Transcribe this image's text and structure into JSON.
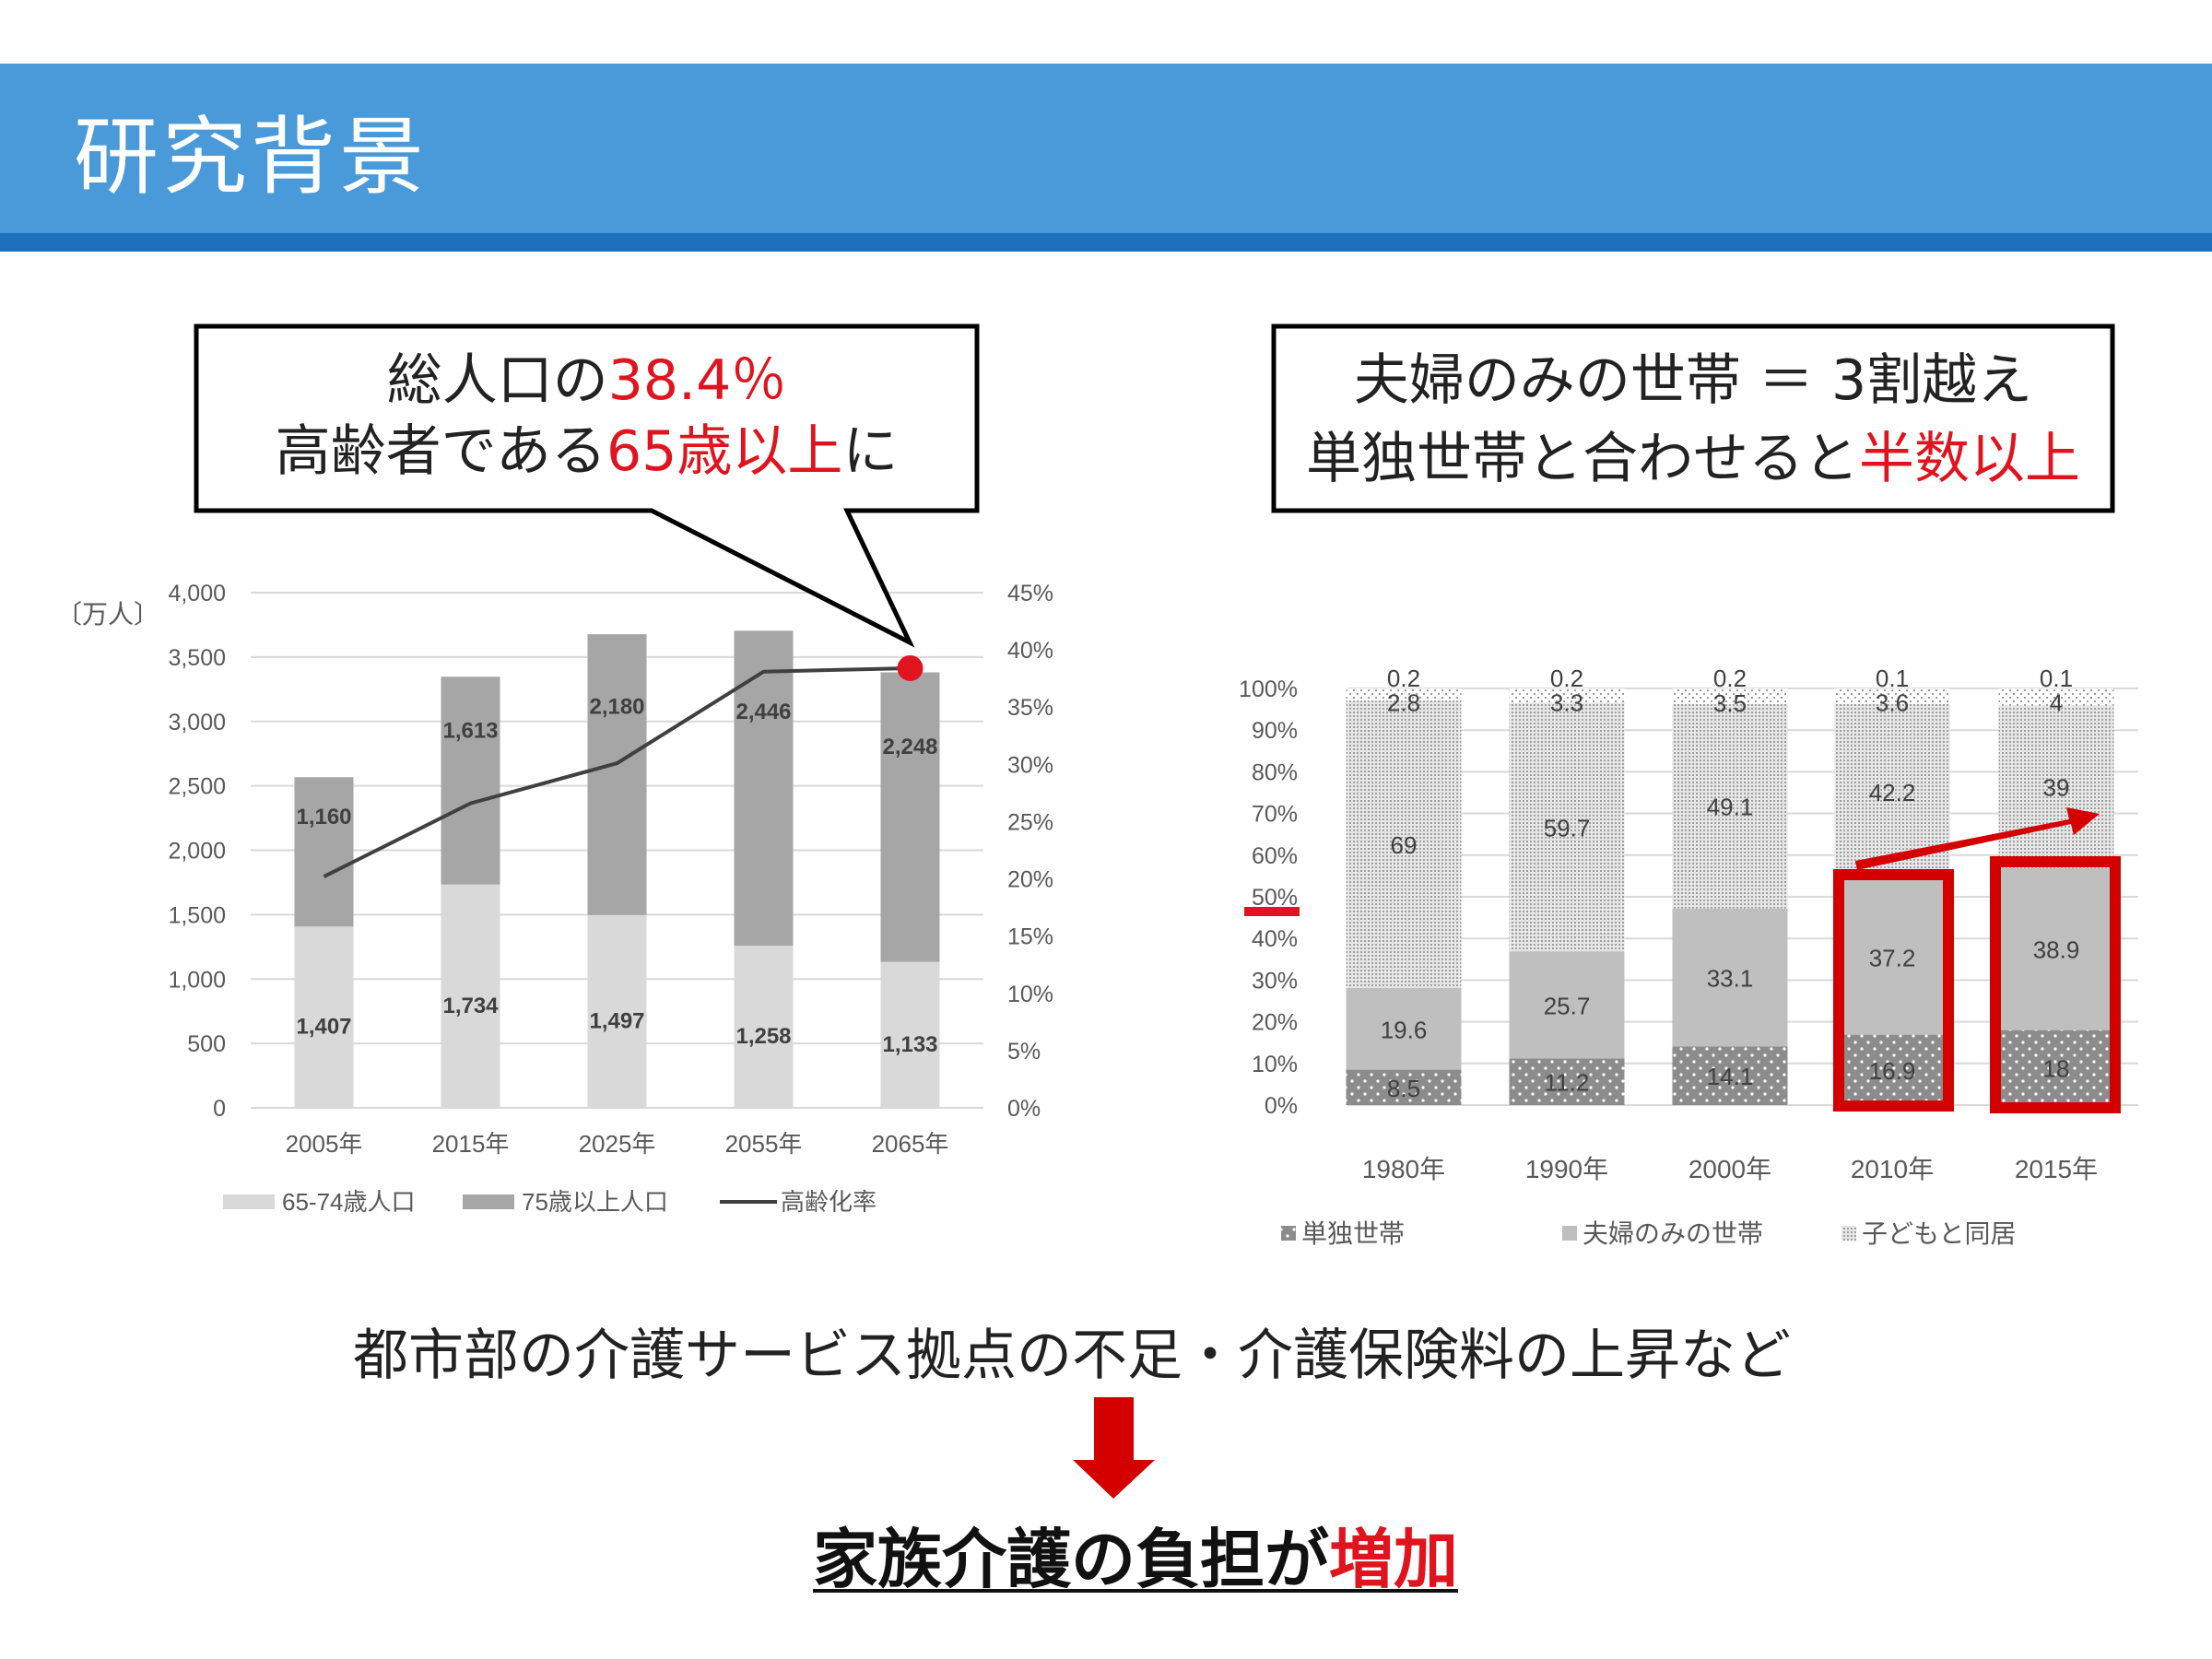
{
  "header": {
    "title": "研究背景"
  },
  "left_callout": {
    "line1_prefix": "総人口の",
    "line1_highlight": "38.4％",
    "line2_prefix": "高齢者である",
    "line2_highlight": "65歳以上",
    "line2_suffix": "に"
  },
  "right_callout": {
    "line1": "夫婦のみの世帯 ＝ 3割越え",
    "line2_prefix": "単独世帯と合わせると",
    "line2_highlight": "半数以上"
  },
  "bottom": {
    "cause": "都市部の介護サービス拠点の不足・介護保険料の上昇など",
    "result_prefix": "家族介護の負担が",
    "result_highlight": "増加"
  },
  "colors": {
    "accent": "#4a9ad9",
    "accent_dark": "#1f6fbf",
    "highlight": "#e0141e"
  },
  "chart_data": [
    {
      "type": "bar",
      "stacked": true,
      "unit_label": "〔万人〕",
      "categories": [
        "2005年",
        "2015年",
        "2025年",
        "2055年",
        "2065年"
      ],
      "series": [
        {
          "name": "65-74歳人口",
          "values": [
            1407,
            1734,
            1497,
            1258,
            1133
          ],
          "color": "#d9d9d9"
        },
        {
          "name": "75歳以上人口",
          "values": [
            1160,
            1613,
            2180,
            2446,
            2248
          ],
          "color": "#a6a6a6"
        }
      ],
      "line_series": {
        "name": "高齢化率",
        "values": [
          20.2,
          26.6,
          30.1,
          38.1,
          38.4
        ],
        "color": "#404040",
        "axis": "right"
      },
      "ylim": [
        0,
        4000
      ],
      "yticks": [
        "0",
        "500",
        "1,000",
        "1,500",
        "2,000",
        "2,500",
        "3,000",
        "3,500",
        "4,000"
      ],
      "y2lim": [
        0,
        45
      ],
      "y2ticks": [
        "0%",
        "5%",
        "10%",
        "15%",
        "20%",
        "25%",
        "30%",
        "35%",
        "40%",
        "45%"
      ],
      "grid": true,
      "legend": "bottom"
    },
    {
      "type": "bar",
      "stacked": true,
      "categories": [
        "1980年",
        "1990年",
        "2000年",
        "2010年",
        "2015年"
      ],
      "series": [
        {
          "name": "単独世帯",
          "values": [
            8.5,
            11.2,
            14.1,
            16.9,
            18
          ]
        },
        {
          "name": "夫婦のみの世帯",
          "values": [
            19.6,
            25.7,
            33.1,
            37.2,
            38.9
          ]
        },
        {
          "name": "子どもと同居",
          "values": [
            69,
            59.7,
            49.1,
            42.2,
            39
          ]
        },
        {
          "name": "",
          "values": [
            2.8,
            3.3,
            3.5,
            3.6,
            4
          ]
        },
        {
          "name": "",
          "values": [
            0.2,
            0.2,
            0.2,
            0.1,
            0.1
          ]
        }
      ],
      "ylim": [
        0,
        100
      ],
      "yticks": [
        "0%",
        "10%",
        "20%",
        "30%",
        "40%",
        "50%",
        "60%",
        "70%",
        "80%",
        "90%",
        "100%"
      ],
      "highlighted_categories": [
        "2010年",
        "2015年"
      ],
      "grid": true,
      "legend": "bottom"
    }
  ]
}
